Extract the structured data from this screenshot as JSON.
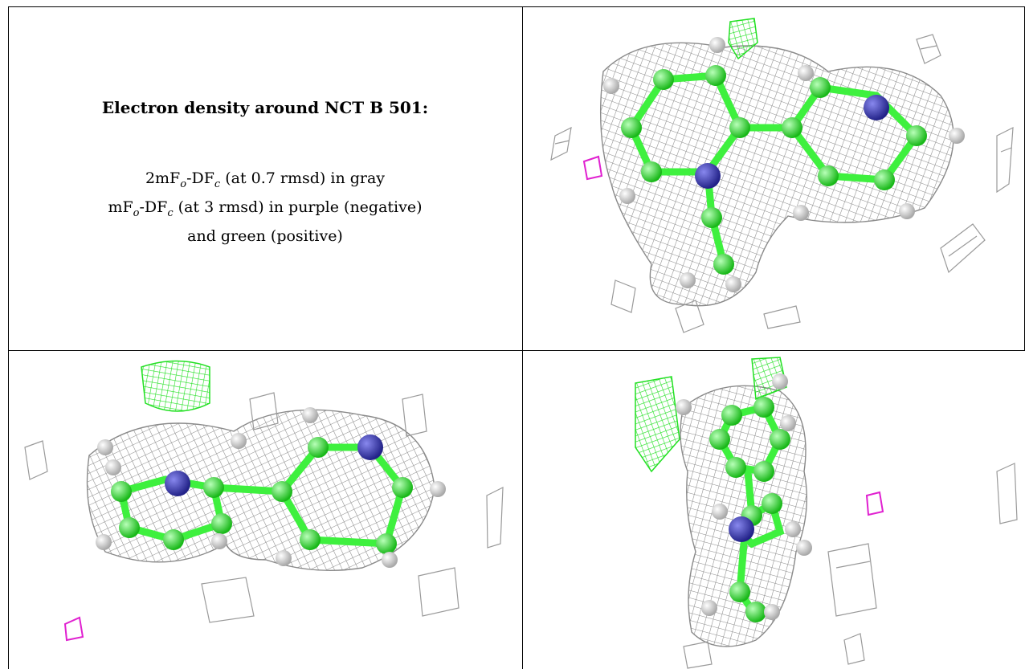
{
  "caption": {
    "title": "Electron density around NCT B 501:",
    "line1_pre": "2mF",
    "line1_sub1": "o",
    "line1_mid": "-DF",
    "line1_sub2": "c",
    "line1_post": " (at 0.7 rmsd) in gray",
    "line2_pre": "mF",
    "line2_sub1": "o",
    "line2_mid": "-DF",
    "line2_sub2": "c",
    "line2_post": " (at 3 rmsd) in purple (negative)",
    "line3": "and green (positive)"
  },
  "colors": {
    "mesh_gray": "#8a8a8a",
    "mesh_light": "#c4c4c4",
    "positive_green": "#22e022",
    "negative_purple": "#e020d0",
    "carbon_green": "#3ef03e",
    "nitrogen_blue": "#3333aa",
    "hydrogen_white": "#e6e6e6"
  }
}
